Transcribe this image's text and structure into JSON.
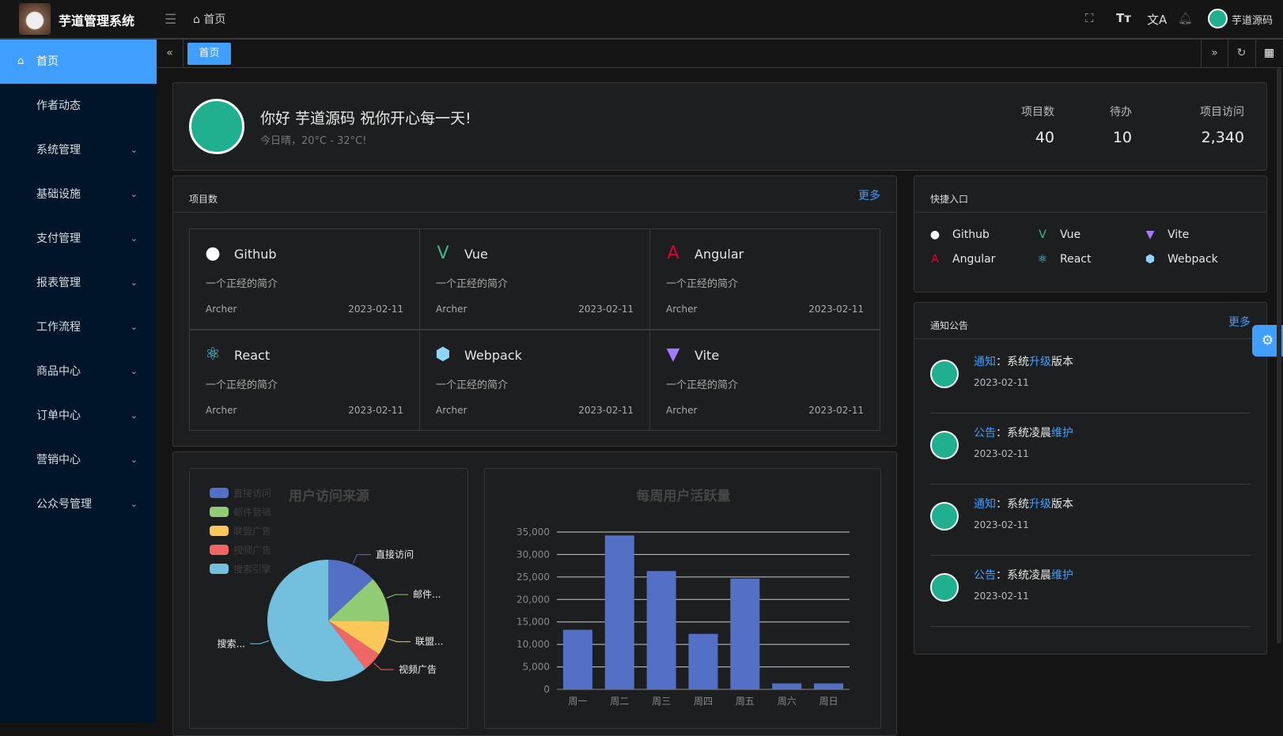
{
  "header": {
    "app_title": "芋道管理系统",
    "breadcrumb": "首页",
    "username": "芋道源码"
  },
  "sidebar": {
    "items": [
      {
        "label": "首页",
        "active": true
      },
      {
        "label": "作者动态"
      },
      {
        "label": "系统管理"
      },
      {
        "label": "基础设施"
      },
      {
        "label": "支付管理"
      },
      {
        "label": "报表管理"
      },
      {
        "label": "工作流程"
      },
      {
        "label": "商品中心"
      },
      {
        "label": "订单中心"
      },
      {
        "label": "营销中心"
      },
      {
        "label": "公众号管理"
      }
    ]
  },
  "tabs": [
    {
      "label": "首页",
      "active": true
    }
  ],
  "welcome": {
    "greeting": "你好 芋道源码 祝你开心每一天!",
    "weather": "今日晴，20°C - 32°C!",
    "stats": [
      {
        "label": "项目数",
        "value": "40"
      },
      {
        "label": "待办",
        "value": "10"
      },
      {
        "label": "项目访问",
        "value": "2,340"
      }
    ]
  },
  "projects": {
    "title": "项目数",
    "more": "更多",
    "items": [
      {
        "name": "Github",
        "icon": "github",
        "desc": "一个正经的简介",
        "author": "Archer",
        "date": "2023-02-11"
      },
      {
        "name": "Vue",
        "icon": "vue",
        "desc": "一个正经的简介",
        "author": "Archer",
        "date": "2023-02-11"
      },
      {
        "name": "Angular",
        "icon": "angular",
        "desc": "一个正经的简介",
        "author": "Archer",
        "date": "2023-02-11"
      },
      {
        "name": "React",
        "icon": "react",
        "desc": "一个正经的简介",
        "author": "Archer",
        "date": "2023-02-11"
      },
      {
        "name": "Webpack",
        "icon": "webpack",
        "desc": "一个正经的简介",
        "author": "Archer",
        "date": "2023-02-11"
      },
      {
        "name": "Vite",
        "icon": "vite",
        "desc": "一个正经的简介",
        "author": "Archer",
        "date": "2023-02-11"
      }
    ]
  },
  "shortcuts": {
    "title": "快捷入口",
    "items": [
      {
        "name": "Github"
      },
      {
        "name": "Vue"
      },
      {
        "name": "Vite"
      },
      {
        "name": "Angular"
      },
      {
        "name": "React"
      },
      {
        "name": "Webpack"
      }
    ]
  },
  "notices": {
    "title": "通知公告",
    "more": "更多",
    "items": [
      {
        "type": "通知",
        "sep": "：",
        "pre": "系统",
        "hl": "升级",
        "post": "版本",
        "date": "2023-02-11"
      },
      {
        "type": "公告",
        "sep": "：",
        "pre": "系统凌晨",
        "hl": "维护",
        "post": "",
        "date": "2023-02-11"
      },
      {
        "type": "通知",
        "sep": "：",
        "pre": "系统",
        "hl": "升级",
        "post": "版本",
        "date": "2023-02-11"
      },
      {
        "type": "公告",
        "sep": "：",
        "pre": "系统凌晨",
        "hl": "维护",
        "post": "",
        "date": "2023-02-11"
      }
    ]
  },
  "chart_data": [
    {
      "type": "pie",
      "title": "用户访问来源",
      "legend": "top-left",
      "slices": [
        {
          "name": "直接访问",
          "label": "直接访问",
          "value": 335,
          "color": "#5470c6"
        },
        {
          "name": "邮件营销",
          "label": "邮件...",
          "value": 310,
          "color": "#91cc75"
        },
        {
          "name": "联盟广告",
          "label": "联盟...",
          "value": 234,
          "color": "#fac858"
        },
        {
          "name": "视频广告",
          "label": "视频广告",
          "value": 135,
          "color": "#ee6666"
        },
        {
          "name": "搜索引擎",
          "label": "搜索...",
          "value": 1548,
          "color": "#73c0de"
        }
      ]
    },
    {
      "type": "bar",
      "title": "每周用户活跃量",
      "categories": [
        "周一",
        "周二",
        "周三",
        "周四",
        "周五",
        "周六",
        "周日"
      ],
      "values": [
        13253,
        34235,
        26321,
        12340,
        24643,
        1322,
        1324
      ],
      "ylim": [
        0,
        35000
      ],
      "yticks": [
        "0",
        "5,000",
        "10,000",
        "15,000",
        "20,000",
        "25,000",
        "30,000",
        "35,000"
      ],
      "grid": true,
      "color": "#5470c6"
    }
  ]
}
